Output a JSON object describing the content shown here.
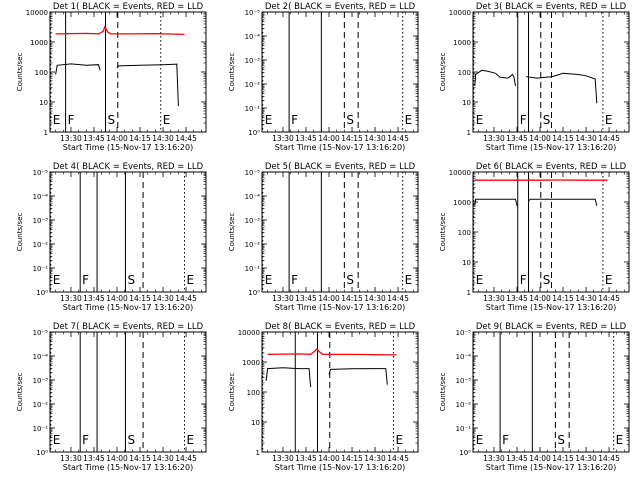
{
  "figure_title": "",
  "colors": {
    "events": "#000000",
    "lld": "#ff0000",
    "background": "#ffffff"
  },
  "x_tick_labels": [
    "13:30",
    "13:45",
    "14:00",
    "14:15",
    "14:30",
    "14:45"
  ],
  "x_ticks_minutes": [
    30,
    45,
    60,
    75,
    90,
    105
  ],
  "x_range_minutes": [
    16.33,
    118
  ],
  "ylim": [
    1,
    15000
  ],
  "y_scale": "log",
  "chart_data": [
    {
      "type": "line",
      "title": "Det 1( BLACK = Events, RED = LLD",
      "xlabel": "Start Time (15-Nov-17 13:16:20)",
      "ylabel": "Counts/sec",
      "yticks": [
        "1",
        "10",
        "100",
        "1000",
        "10000"
      ],
      "markers": [
        {
          "label": "E",
          "minute": 16.8,
          "style": "dotted"
        },
        {
          "label": "F",
          "minute": 26.5,
          "style": "solid"
        },
        {
          "label": "S",
          "minute": 52.5,
          "style": "solid"
        },
        {
          "label": "",
          "minute": 60.5,
          "style": "dashed"
        },
        {
          "label": "E",
          "minute": 88.5,
          "style": "dotted"
        }
      ],
      "series": [
        {
          "color": "red",
          "segments": [
            [
              [
                20,
                2600
              ],
              [
                40,
                2700
              ],
              [
                48,
                2600
              ],
              [
                51,
                3200
              ],
              [
                52,
                4500
              ],
              [
                54,
                3000
              ],
              [
                56,
                2600
              ],
              [
                70,
                2600
              ],
              [
                85,
                2650
              ],
              [
                104,
                2500
              ]
            ]
          ]
        },
        {
          "color": "black",
          "segments": [
            [
              [
                20,
                100
              ],
              [
                21,
                210
              ],
              [
                30,
                235
              ],
              [
                40,
                210
              ],
              [
                48,
                220
              ],
              [
                49,
                140
              ]
            ],
            [
              [
                60,
                170
              ],
              [
                61,
                200
              ],
              [
                75,
                210
              ],
              [
                90,
                220
              ],
              [
                99,
                230
              ],
              [
                100,
                8
              ]
            ]
          ]
        }
      ]
    },
    {
      "type": "line",
      "title": "Det 2( BLACK = Events, RED = LLD",
      "xlabel": "Start Time (15-Nov-17 13:16:20)",
      "ylabel": "Counts/sec",
      "yticks": [
        "10⁰",
        "10⁻¹",
        "10⁻²",
        "10⁻³",
        "10⁻⁴",
        "10⁻⁵"
      ],
      "markers": [
        {
          "label": "E",
          "minute": 16.8,
          "style": "dotted"
        },
        {
          "label": "F",
          "minute": 34,
          "style": "solid"
        },
        {
          "label": "",
          "minute": 55,
          "style": "solid"
        },
        {
          "label": "S",
          "minute": 70,
          "style": "dashed"
        },
        {
          "label": "",
          "minute": 79,
          "style": "dashed"
        },
        {
          "label": "E",
          "minute": 108,
          "style": "dotted"
        }
      ],
      "series": []
    },
    {
      "type": "line",
      "title": "Det 3( BLACK = Events, RED = LLD",
      "xlabel": "Start Time (15-Nov-17 13:16:20)",
      "ylabel": "Counts/sec",
      "yticks": [
        "1",
        "10",
        "100",
        "1000",
        "10000"
      ],
      "markers": [
        {
          "label": "E",
          "minute": 16.8,
          "style": "dotted"
        },
        {
          "label": "F",
          "minute": 45.5,
          "style": "solid"
        },
        {
          "label": "",
          "minute": 52.5,
          "style": "solid"
        },
        {
          "label": "S",
          "minute": 60.5,
          "style": "dashed"
        },
        {
          "label": "",
          "minute": 67.5,
          "style": "dashed"
        },
        {
          "label": "E",
          "minute": 101,
          "style": "dotted"
        }
      ],
      "series": [
        {
          "color": "black",
          "segments": [
            [
              [
                17.5,
                40
              ],
              [
                18,
                100
              ],
              [
                22,
                140
              ],
              [
                26,
                130
              ],
              [
                31,
                110
              ],
              [
                34,
                80
              ],
              [
                39,
                75
              ],
              [
                41,
                90
              ],
              [
                42,
                100
              ],
              [
                43,
                85
              ],
              [
                44,
                40
              ]
            ],
            [
              [
                51,
                85
              ],
              [
                58,
                75
              ],
              [
                68,
                85
              ],
              [
                75,
                110
              ],
              [
                85,
                100
              ],
              [
                90,
                90
              ],
              [
                96,
                70
              ],
              [
                97,
                10
              ]
            ]
          ]
        }
      ]
    },
    {
      "type": "line",
      "title": "Det 4( BLACK = Events, RED = LLD",
      "xlabel": "Start Time (15-Nov-17 13:16:20)",
      "ylabel": "Counts/sec",
      "yticks": [
        "10⁰",
        "10⁻¹",
        "10⁻²",
        "10⁻³",
        "10⁻⁴",
        "10⁻⁵"
      ],
      "markers": [
        {
          "label": "E",
          "minute": 16.8,
          "style": "dotted"
        },
        {
          "label": "F",
          "minute": 36,
          "style": "solid"
        },
        {
          "label": "",
          "minute": 47,
          "style": "solid"
        },
        {
          "label": "S",
          "minute": 65.5,
          "style": "solid"
        },
        {
          "label": "",
          "minute": 77,
          "style": "dashed"
        },
        {
          "label": "E",
          "minute": 104,
          "style": "dotted"
        }
      ],
      "series": []
    },
    {
      "type": "line",
      "title": "Det 5( BLACK = Events, RED = LLD",
      "xlabel": "Start Time (15-Nov-17 13:16:20)",
      "ylabel": "Counts/sec",
      "yticks": [
        "10⁰",
        "10⁻¹",
        "10⁻²",
        "10⁻³",
        "10⁻⁴",
        "10⁻⁵"
      ],
      "markers": [
        {
          "label": "E",
          "minute": 16.8,
          "style": "dotted"
        },
        {
          "label": "F",
          "minute": 34,
          "style": "solid"
        },
        {
          "label": "",
          "minute": 55,
          "style": "solid"
        },
        {
          "label": "S",
          "minute": 70,
          "style": "dashed"
        },
        {
          "label": "",
          "minute": 79,
          "style": "dashed"
        },
        {
          "label": "E",
          "minute": 108,
          "style": "dotted"
        }
      ],
      "series": []
    },
    {
      "type": "line",
      "title": "Det 6( BLACK = Events, RED = LLD",
      "xlabel": "Start Time (15-Nov-17 13:16:20)",
      "ylabel": "Counts/sec",
      "yticks": [
        "1",
        "10",
        "100",
        "1000",
        "10000"
      ],
      "markers": [
        {
          "label": "E",
          "minute": 16.8,
          "style": "dotted"
        },
        {
          "label": "F",
          "minute": 45.5,
          "style": "solid"
        },
        {
          "label": "",
          "minute": 52.5,
          "style": "solid"
        },
        {
          "label": "S",
          "minute": 60.5,
          "style": "dashed"
        },
        {
          "label": "",
          "minute": 67.5,
          "style": "dashed"
        },
        {
          "label": "E",
          "minute": 101,
          "style": "dotted"
        }
      ],
      "series": [
        {
          "color": "red",
          "segments": [
            [
              [
                17.5,
                7800
              ],
              [
                40,
                7800
              ],
              [
                51,
                7800
              ],
              [
                60,
                7800
              ],
              [
                70,
                7900
              ],
              [
                90,
                7800
              ],
              [
                104,
                7800
              ]
            ]
          ]
        },
        {
          "color": "black",
          "segments": [
            [
              [
                17.5,
                1000
              ],
              [
                18,
                1700
              ],
              [
                30,
                1700
              ],
              [
                40,
                1700
              ],
              [
                44,
                1700
              ],
              [
                45,
                1000
              ]
            ],
            [
              [
                53,
                1500
              ],
              [
                53.5,
                1700
              ],
              [
                70,
                1700
              ],
              [
                90,
                1700
              ],
              [
                96,
                1700
              ],
              [
                97,
                1000
              ]
            ]
          ]
        }
      ]
    },
    {
      "type": "line",
      "title": "Det 7( BLACK = Events, RED = LLD",
      "xlabel": "Start Time (15-Nov-17 13:16:20)",
      "ylabel": "Counts/sec",
      "yticks": [
        "10⁰",
        "10⁻¹",
        "10⁻²",
        "10⁻³",
        "10⁻⁴",
        "10⁻⁵"
      ],
      "markers": [
        {
          "label": "E",
          "minute": 16.8,
          "style": "dotted"
        },
        {
          "label": "F",
          "minute": 36,
          "style": "solid"
        },
        {
          "label": "",
          "minute": 47,
          "style": "solid"
        },
        {
          "label": "S",
          "minute": 65.5,
          "style": "solid"
        },
        {
          "label": "",
          "minute": 77,
          "style": "dashed"
        },
        {
          "label": "E",
          "minute": 104,
          "style": "dotted"
        }
      ],
      "series": []
    },
    {
      "type": "line",
      "title": "Det 8( BLACK = Events, RED = LLD",
      "xlabel": "Start Time (15-Nov-17 13:16:20)",
      "ylabel": "Counts/sec",
      "yticks": [
        "1",
        "10",
        "100",
        "1000",
        "10000"
      ],
      "markers": [
        {
          "label": "",
          "minute": 16.8,
          "style": "dotted"
        },
        {
          "label": "",
          "minute": 38,
          "style": "solid"
        },
        {
          "label": "",
          "minute": 52.5,
          "style": "solid"
        },
        {
          "label": "",
          "minute": 60.5,
          "style": "dashed"
        },
        {
          "label": "E",
          "minute": 102,
          "style": "dotted"
        }
      ],
      "series": [
        {
          "color": "red",
          "segments": [
            [
              [
                20,
                2500
              ],
              [
                40,
                2600
              ],
              [
                48,
                2500
              ],
              [
                51,
                3300
              ],
              [
                52,
                3800
              ],
              [
                54,
                3000
              ],
              [
                56,
                2500
              ],
              [
                75,
                2500
              ],
              [
                104,
                2400
              ]
            ]
          ]
        },
        {
          "color": "black",
          "segments": [
            [
              [
                19,
                300
              ],
              [
                20,
                800
              ],
              [
                30,
                850
              ],
              [
                40,
                800
              ],
              [
                47,
                800
              ],
              [
                48,
                180
              ]
            ],
            [
              [
                60,
                500
              ],
              [
                61,
                750
              ],
              [
                75,
                790
              ],
              [
                90,
                800
              ],
              [
                97,
                800
              ],
              [
                98,
                220
              ]
            ]
          ]
        }
      ]
    },
    {
      "type": "line",
      "title": "Det 9( BLACK = Events, RED = LLD",
      "xlabel": "Start Time (15-Nov-17 13:16:20)",
      "ylabel": "Counts/sec",
      "yticks": [
        "10⁰",
        "10⁻¹",
        "10⁻²",
        "10⁻³",
        "10⁻⁴",
        "10⁻⁵"
      ],
      "markers": [
        {
          "label": "E",
          "minute": 16.8,
          "style": "dotted"
        },
        {
          "label": "F",
          "minute": 34,
          "style": "solid"
        },
        {
          "label": "",
          "minute": 55,
          "style": "solid"
        },
        {
          "label": "S",
          "minute": 70,
          "style": "dashed"
        },
        {
          "label": "",
          "minute": 79,
          "style": "dashed"
        },
        {
          "label": "E",
          "minute": 108,
          "style": "dotted"
        }
      ],
      "series": []
    }
  ]
}
